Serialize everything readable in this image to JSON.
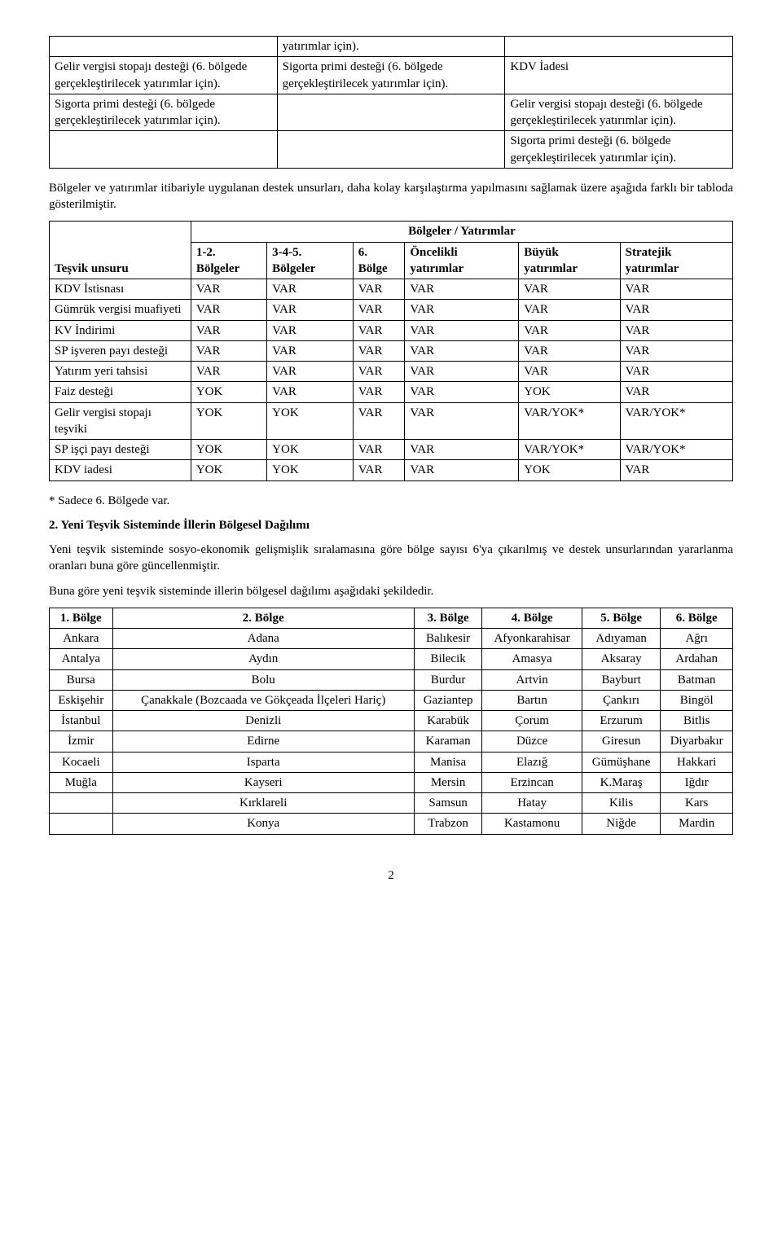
{
  "table1": {
    "rows": [
      {
        "c1": "",
        "c2": "yatırımlar için).",
        "c3": ""
      },
      {
        "c1": "Gelir vergisi stopajı desteği (6. bölgede gerçekleştirilecek yatırımlar için).",
        "c2": "Sigorta primi desteği (6. bölgede gerçekleştirilecek yatırımlar için).",
        "c3": "KDV İadesi"
      },
      {
        "c1": "Sigorta primi desteği (6. bölgede gerçekleştirilecek yatırımlar için).",
        "c2": "",
        "c3": "Gelir vergisi stopajı desteği (6. bölgede gerçekleştirilecek yatırımlar için)."
      },
      {
        "c1": "",
        "c2": "",
        "c3": "Sigorta primi desteği (6. bölgede gerçekleştirilecek yatırımlar için)."
      }
    ]
  },
  "p1": "Bölgeler ve yatırımlar itibariyle uygulanan destek unsurları, daha kolay karşılaştırma yapılmasını sağlamak üzere aşağıda farklı bir tabloda gösterilmiştir.",
  "table2": {
    "group_header": "Bölgeler / Yatırımlar",
    "headers": [
      "Teşvik unsuru",
      "1-2. Bölgeler",
      "3-4-5. Bölgeler",
      "6. Bölge",
      "Öncelikli yatırımlar",
      "Büyük yatırımlar",
      "Stratejik yatırımlar"
    ],
    "rows": [
      [
        "KDV İstisnası",
        "VAR",
        "VAR",
        "VAR",
        "VAR",
        "VAR",
        "VAR"
      ],
      [
        "Gümrük vergisi muafiyeti",
        "VAR",
        "VAR",
        "VAR",
        "VAR",
        "VAR",
        "VAR"
      ],
      [
        "KV İndirimi",
        "VAR",
        "VAR",
        "VAR",
        "VAR",
        "VAR",
        "VAR"
      ],
      [
        "SP işveren payı desteği",
        "VAR",
        "VAR",
        "VAR",
        "VAR",
        "VAR",
        "VAR"
      ],
      [
        "Yatırım yeri tahsisi",
        "VAR",
        "VAR",
        "VAR",
        "VAR",
        "VAR",
        "VAR"
      ],
      [
        "Faiz desteği",
        "YOK",
        "VAR",
        "VAR",
        "VAR",
        "YOK",
        "VAR"
      ],
      [
        "Gelir vergisi stopajı teşviki",
        "YOK",
        "YOK",
        "VAR",
        "VAR",
        "VAR/YOK*",
        "VAR/YOK*"
      ],
      [
        "SP işçi payı desteği",
        "YOK",
        "YOK",
        "VAR",
        "VAR",
        "VAR/YOK*",
        "VAR/YOK*"
      ],
      [
        "KDV iadesi",
        "YOK",
        "YOK",
        "VAR",
        "VAR",
        "YOK",
        "VAR"
      ]
    ]
  },
  "note_star": "* Sadece 6. Bölgede var.",
  "h2": "2. Yeni Teşvik Sisteminde İllerin Bölgesel Dağılımı",
  "p2": "Yeni teşvik sisteminde sosyo-ekonomik gelişmişlik sıralamasına göre bölge sayısı 6'ya çıkarılmış ve destek unsurlarından yararlanma oranları buna göre güncellenmiştir.",
  "p3": "Buna göre yeni teşvik sisteminde illerin bölgesel dağılımı aşağıdaki şekildedir.",
  "table3": {
    "headers": [
      "1. Bölge",
      "2. Bölge",
      "3. Bölge",
      "4. Bölge",
      "5. Bölge",
      "6. Bölge"
    ],
    "rows": [
      [
        "Ankara",
        "Adana",
        "Balıkesir",
        "Afyonkarahisar",
        "Adıyaman",
        "Ağrı"
      ],
      [
        "Antalya",
        "Aydın",
        "Bilecik",
        "Amasya",
        "Aksaray",
        "Ardahan"
      ],
      [
        "Bursa",
        "Bolu",
        "Burdur",
        "Artvin",
        "Bayburt",
        "Batman"
      ],
      [
        "Eskişehir",
        "Çanakkale (Bozcaada ve Gökçeada İlçeleri Hariç)",
        "Gaziantep",
        "Bartın",
        "Çankırı",
        "Bingöl"
      ],
      [
        "İstanbul",
        "Denizli",
        "Karabük",
        "Çorum",
        "Erzurum",
        "Bitlis"
      ],
      [
        "İzmir",
        "Edirne",
        "Karaman",
        "Düzce",
        "Giresun",
        "Diyarbakır"
      ],
      [
        "Kocaeli",
        "Isparta",
        "Manisa",
        "Elazığ",
        "Gümüşhane",
        "Hakkari"
      ],
      [
        "Muğla",
        "Kayseri",
        "Mersin",
        "Erzincan",
        "K.Maraş",
        "Iğdır"
      ],
      [
        "",
        "Kırklareli",
        "Samsun",
        "Hatay",
        "Kilis",
        "Kars"
      ],
      [
        "",
        "Konya",
        "Trabzon",
        "Kastamonu",
        "Niğde",
        "Mardin"
      ]
    ]
  },
  "page_number": "2"
}
